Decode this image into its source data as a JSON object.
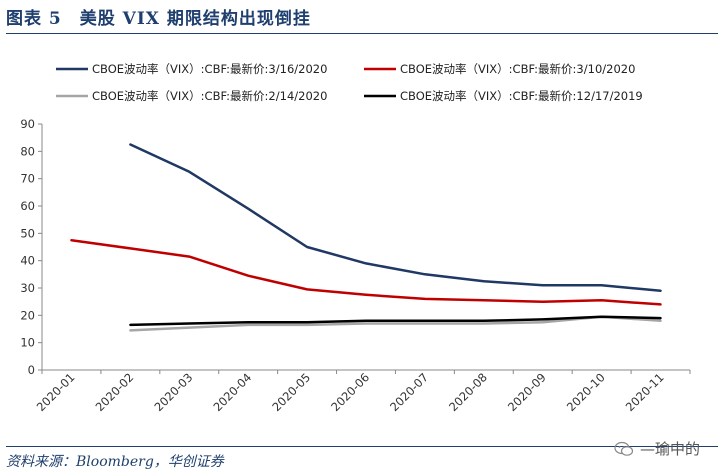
{
  "figure": {
    "title": "图表 5　美股 VIX 期限结构出现倒挂",
    "source": "资料来源：Bloomberg，华创证券",
    "watermark": "—瑜中的"
  },
  "chart_data": {
    "type": "line",
    "title": "图表 5　美股 VIX 期限结构出现倒挂",
    "xlabel": "",
    "ylabel": "",
    "ylim": [
      0,
      90
    ],
    "yticks": [
      "0",
      "10",
      "20",
      "30",
      "40",
      "50",
      "60",
      "70",
      "80",
      "90"
    ],
    "ytick_values": [
      0,
      10,
      20,
      30,
      40,
      50,
      60,
      70,
      80,
      90
    ],
    "categories": [
      "2020-01",
      "2020-02",
      "2020-03",
      "2020-04",
      "2020-05",
      "2020-06",
      "2020-07",
      "2020-08",
      "2020-09",
      "2020-10",
      "2020-11"
    ],
    "grid": false,
    "legend": "top",
    "series": [
      {
        "name": "CBOE波动率（VIX）:CBF:最新价:3/16/2020",
        "color": "#1f3864",
        "values": [
          null,
          82.5,
          72.5,
          59,
          45,
          39,
          35,
          32.5,
          31,
          31,
          29
        ]
      },
      {
        "name": "CBOE波动率（VIX）:CBF:最新价:3/10/2020",
        "color": "#c00000",
        "values": [
          47.5,
          44.5,
          41.5,
          34.5,
          29.5,
          27.5,
          26,
          25.5,
          25,
          25.5,
          24
        ]
      },
      {
        "name": "CBOE波动率（VIX）:CBF:最新价:2/14/2020",
        "color": "#a6a6a6",
        "values": [
          null,
          14.5,
          15.5,
          16.5,
          16.5,
          17,
          17,
          17,
          17.5,
          19.5,
          18
        ]
      },
      {
        "name": "CBOE波动率（VIX）:CBF:最新价:12/17/2019",
        "color": "#000000",
        "values": [
          null,
          16.5,
          17,
          17.5,
          17.5,
          18,
          18,
          18,
          18.5,
          19.5,
          19
        ]
      }
    ]
  }
}
